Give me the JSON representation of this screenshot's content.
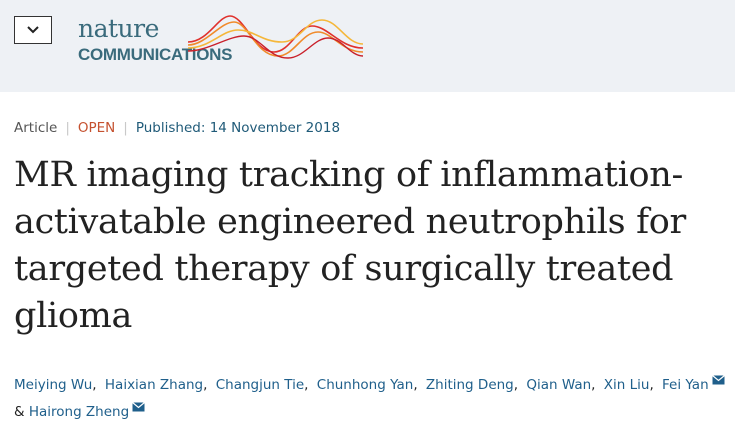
{
  "header": {
    "logo_top": "nature",
    "logo_bottom": "COMMUNICATIONS"
  },
  "article": {
    "type": "Article",
    "access": "OPEN",
    "published_label": "Published:",
    "published_date": "14 November 2018",
    "title": "MR imaging tracking of inflammation-activatable engineered neutrophils for targeted therapy of surgically treated glioma",
    "separator": ",",
    "conjunction": "&",
    "authors": [
      {
        "name": "Meiying Wu"
      },
      {
        "name": "Haixian Zhang"
      },
      {
        "name": "Changjun Tie"
      },
      {
        "name": "Chunhong Yan"
      },
      {
        "name": "Zhiting Deng"
      },
      {
        "name": "Qian Wan"
      },
      {
        "name": "Xin Liu"
      },
      {
        "name": "Fei Yan",
        "corresponding": true
      },
      {
        "name": "Hairong Zheng",
        "corresponding": true
      }
    ]
  }
}
